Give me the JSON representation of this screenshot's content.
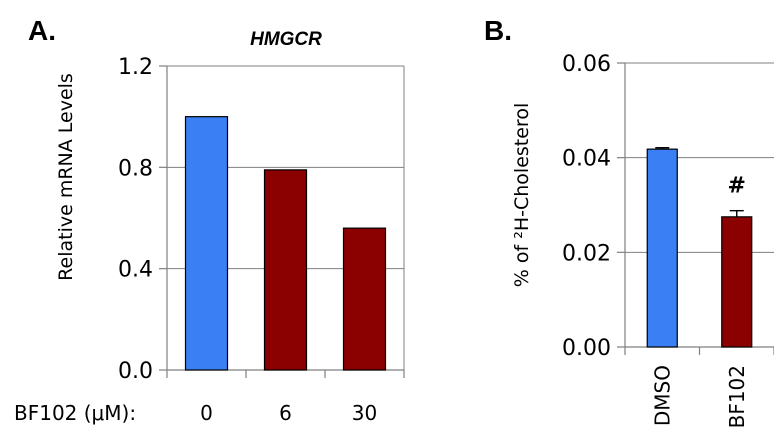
{
  "chart_data": [
    {
      "panel": "A.",
      "type": "bar",
      "title": "HMGCR",
      "ylabel": "Relative mRNA Levels",
      "xlabel": "BF102 (μM):",
      "categories": [
        "0",
        "6",
        "30"
      ],
      "values": [
        1.0,
        0.79,
        0.56
      ],
      "bar_colors": [
        "#3b7ff5",
        "#8b0000",
        "#8b0000"
      ],
      "ylim": [
        0,
        1.2
      ],
      "yticks": [
        "0.0",
        "0.4",
        "0.8",
        "1.2"
      ],
      "ytick_values": [
        0,
        0.4,
        0.8,
        1.2
      ],
      "grid": true
    },
    {
      "panel": "B.",
      "type": "bar",
      "title": "",
      "ylabel": "% of ²H-Cholesterol",
      "categories": [
        "DMSO",
        "BF102"
      ],
      "values": [
        0.0418,
        0.0275
      ],
      "errors": [
        0.0003,
        0.0013
      ],
      "bar_colors": [
        "#3b7ff5",
        "#8b0000"
      ],
      "annotations": [
        "",
        "#"
      ],
      "ylim": [
        0,
        0.06
      ],
      "yticks": [
        "0.00",
        "0.02",
        "0.04",
        "0.06"
      ],
      "ytick_values": [
        0,
        0.02,
        0.04,
        0.06
      ],
      "grid": true
    }
  ]
}
